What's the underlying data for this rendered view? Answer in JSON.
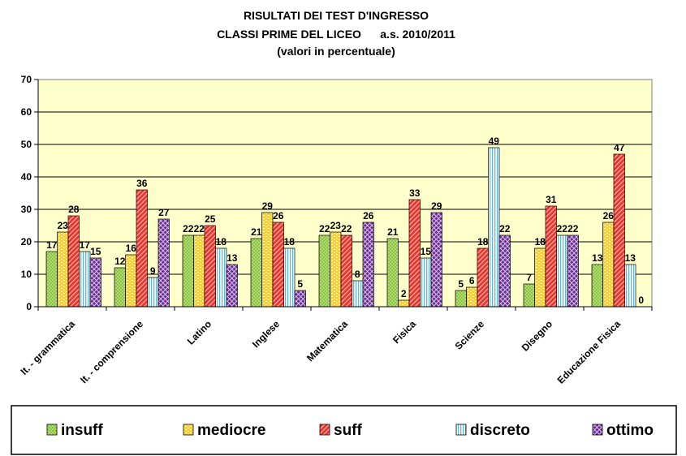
{
  "chart_data": {
    "type": "bar",
    "title": [
      "RISULTATI DEI TEST D'INGRESSO",
      "CLASSI PRIME DEL LICEO      a.s. 2010/2011",
      "(valori in percentuale)"
    ],
    "categories": [
      "It. - grammatica",
      "It. - comprensione",
      "Latino",
      "Inglese",
      "Matematica",
      "Fisica",
      "Scienze",
      "Disegno",
      "Educazione Fisica"
    ],
    "series": [
      {
        "name": "insuff",
        "color": "#8cc63f",
        "pattern": "dots",
        "values": [
          17,
          12,
          22,
          21,
          22,
          21,
          5,
          7,
          13
        ],
        "labels": [
          "17",
          "12",
          "22",
          "21",
          "22",
          "21",
          "5",
          "7",
          "13"
        ]
      },
      {
        "name": "mediocre",
        "color": "#f2d04b",
        "pattern": "dashes",
        "values": [
          23,
          16,
          22,
          29,
          23,
          2,
          6,
          18,
          26
        ],
        "labels": [
          "23",
          "16",
          "22",
          "29",
          "23",
          "2",
          "6",
          "18",
          "26"
        ]
      },
      {
        "name": "suff",
        "color": "#e8342a",
        "pattern": "diag",
        "values": [
          28,
          36,
          25,
          26,
          22,
          33,
          18,
          31,
          47
        ],
        "labels": [
          "28",
          "36",
          "25",
          "26",
          "22",
          "33",
          "18",
          "31",
          "47"
        ]
      },
      {
        "name": "discreto",
        "color": "#9dd7ea",
        "pattern": "vert",
        "values": [
          17,
          9,
          18,
          18,
          8,
          15,
          49,
          22,
          13
        ],
        "labels": [
          "17",
          "9",
          "18",
          "18",
          "8",
          "15",
          "49",
          "22",
          "13"
        ]
      },
      {
        "name": "ottimo",
        "color": "#6a2c91",
        "pattern": "diamond",
        "values": [
          15,
          27,
          13,
          5,
          26,
          29,
          22,
          22,
          0
        ],
        "labels": [
          "15",
          "27",
          "13",
          "5",
          "26",
          "29",
          "22",
          "22",
          "0"
        ]
      }
    ],
    "yticks": [
      "0",
      "10",
      "20",
      "30",
      "40",
      "50",
      "60",
      "70"
    ],
    "ylim": [
      0,
      70
    ],
    "grid": true,
    "plot_background": "#ffffcc",
    "legend_position": "bottom"
  }
}
